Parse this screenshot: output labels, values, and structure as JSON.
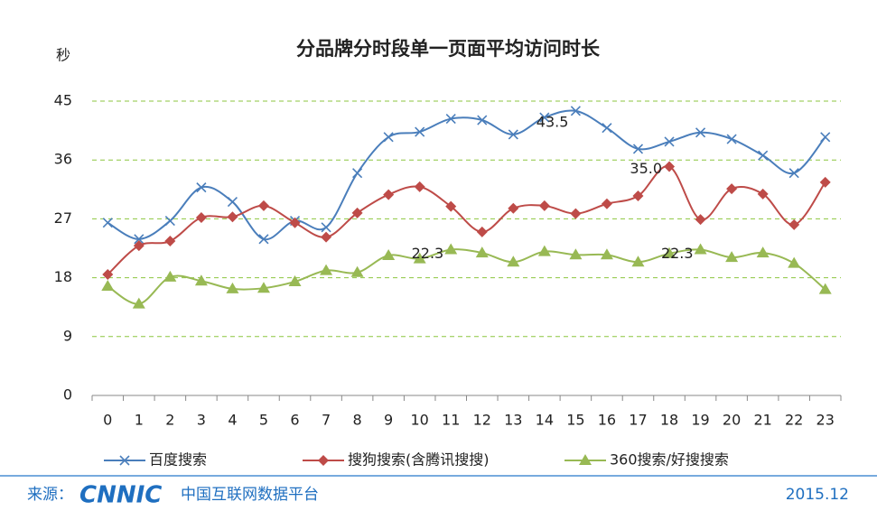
{
  "chart_data": {
    "type": "line",
    "title": "分品牌分时段单一页面平均访问时长",
    "y_label": "秒",
    "categories": [
      "0",
      "1",
      "2",
      "3",
      "4",
      "5",
      "6",
      "7",
      "8",
      "9",
      "10",
      "11",
      "12",
      "13",
      "14",
      "15",
      "16",
      "17",
      "18",
      "19",
      "20",
      "21",
      "22",
      "23"
    ],
    "ylim": [
      0,
      45
    ],
    "yticks": [
      0,
      9,
      18,
      27,
      36,
      45
    ],
    "grid": true,
    "legend": "bottom",
    "series": [
      {
        "name": "百度搜索",
        "color": "#4a7ebb",
        "marker": "x",
        "values": [
          26.4,
          23.9,
          26.7,
          31.8,
          29.6,
          23.9,
          26.7,
          25.7,
          34.0,
          39.5,
          40.3,
          42.3,
          42.1,
          39.9,
          42.5,
          43.5,
          40.9,
          37.7,
          38.8,
          40.2,
          39.2,
          36.7,
          34.0,
          39.5
        ],
        "value_labels": [
          null,
          null,
          null,
          null,
          null,
          null,
          null,
          null,
          null,
          null,
          null,
          null,
          null,
          null,
          null,
          "43.5",
          null,
          null,
          null,
          null,
          null,
          null,
          null,
          null
        ]
      },
      {
        "name": "搜狗搜索(含腾讯搜搜)",
        "color": "#be4b48",
        "marker": "diamond",
        "values": [
          18.5,
          22.9,
          23.6,
          27.2,
          27.3,
          29.0,
          26.4,
          24.2,
          27.9,
          30.7,
          31.9,
          28.9,
          25.0,
          28.6,
          29.0,
          27.8,
          29.3,
          30.5,
          35.0,
          26.9,
          31.6,
          30.8,
          26.1,
          32.6
        ],
        "value_labels": [
          null,
          null,
          null,
          null,
          null,
          null,
          null,
          null,
          null,
          null,
          null,
          null,
          null,
          null,
          null,
          null,
          null,
          null,
          "35.0",
          null,
          null,
          null,
          null,
          null
        ]
      },
      {
        "name": "360搜索/好搜搜索",
        "color": "#98b954",
        "marker": "triangle",
        "values": [
          16.7,
          14.0,
          18.1,
          17.5,
          16.3,
          16.4,
          17.4,
          19.1,
          18.8,
          21.4,
          20.9,
          22.3,
          21.8,
          20.4,
          22.0,
          21.5,
          21.5,
          20.4,
          21.7,
          22.3,
          21.1,
          21.8,
          20.2,
          16.2
        ],
        "value_labels": [
          null,
          null,
          null,
          null,
          null,
          null,
          null,
          null,
          null,
          null,
          null,
          "22.3",
          null,
          null,
          null,
          null,
          null,
          null,
          null,
          "22.3",
          null,
          null,
          null,
          null
        ]
      }
    ]
  },
  "footer": {
    "source_label": "来源：",
    "logo": "CNNIC",
    "platform": "中国互联网数据平台",
    "date": "2015.12"
  }
}
